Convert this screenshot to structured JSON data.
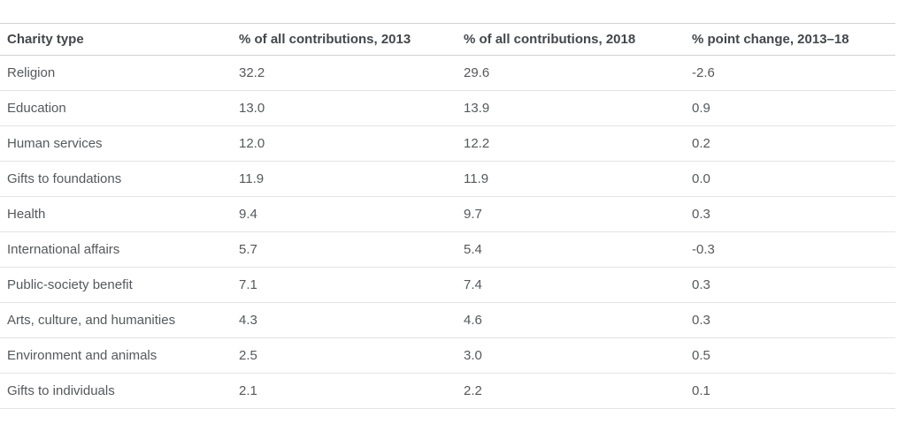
{
  "chart_data": {
    "type": "table",
    "columns": [
      "Charity type",
      "% of all contributions, 2013",
      "% of all contributions, 2018",
      "% point change, 2013–18"
    ],
    "rows": [
      [
        "Religion",
        "32.2",
        "29.6",
        "-2.6"
      ],
      [
        "Education",
        "13.0",
        "13.9",
        "0.9"
      ],
      [
        "Human services",
        "12.0",
        "12.2",
        "0.2"
      ],
      [
        "Gifts to foundations",
        "11.9",
        "11.9",
        "0.0"
      ],
      [
        "Health",
        "9.4",
        "9.7",
        "0.3"
      ],
      [
        "International affairs",
        "5.7",
        "5.4",
        "-0.3"
      ],
      [
        "Public-society benefit",
        "7.1",
        "7.4",
        "0.3"
      ],
      [
        "Arts, culture, and humanities",
        "4.3",
        "4.6",
        "0.3"
      ],
      [
        "Environment and animals",
        "2.5",
        "3.0",
        "0.5"
      ],
      [
        "Gifts to individuals",
        "2.1",
        "2.2",
        "0.1"
      ]
    ],
    "layout": {
      "grid": "horizontal row separators only",
      "alignment": "all columns left-aligned"
    }
  },
  "colors": {
    "background": "#ffffff",
    "header_text": "#43474c",
    "body_text": "#55585d",
    "outer_border": "#d2d2d2",
    "row_border": "#e4e4e4"
  }
}
